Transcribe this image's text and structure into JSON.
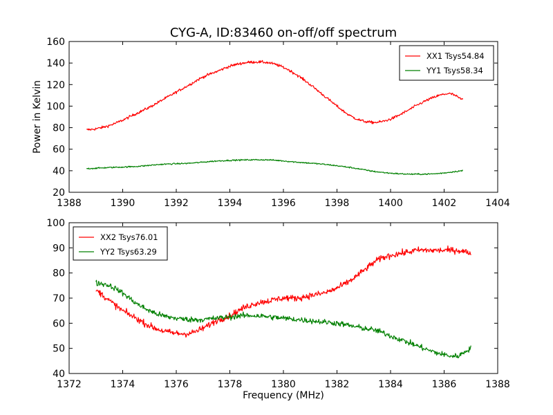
{
  "figure": {
    "title": "CYG-A, ID:83460 on-off/off spectrum"
  },
  "chart_data": [
    {
      "type": "line",
      "title": "CYG-A, ID:83460 on-off/off spectrum",
      "xlabel": "",
      "ylabel": "Power in Kelvin",
      "xlim": [
        1388,
        1404
      ],
      "ylim": [
        20,
        160
      ],
      "xticks": [
        1388,
        1390,
        1392,
        1394,
        1396,
        1398,
        1400,
        1402,
        1404
      ],
      "yticks": [
        20,
        40,
        60,
        80,
        100,
        120,
        140,
        160
      ],
      "xtick_labels": [
        "1388",
        "1390",
        "1392",
        "1394",
        "1396",
        "1398",
        "1400",
        "1402",
        "1404"
      ],
      "ytick_labels": [
        "20",
        "40",
        "60",
        "80",
        "100",
        "120",
        "140",
        "160"
      ],
      "grid": false,
      "legend_position": "top-right",
      "series": [
        {
          "name": "XX1 Tsys54.84",
          "color": "#ff0000",
          "noise": 0.9,
          "x": [
            1388.65,
            1389.0,
            1389.5,
            1390.0,
            1390.5,
            1391.0,
            1391.5,
            1392.0,
            1392.5,
            1393.0,
            1393.5,
            1394.0,
            1394.5,
            1395.0,
            1395.5,
            1396.0,
            1396.5,
            1397.0,
            1397.5,
            1398.0,
            1398.5,
            1399.0,
            1399.5,
            1400.0,
            1400.5,
            1401.0,
            1401.5,
            1402.0,
            1402.3,
            1402.7
          ],
          "values": [
            78,
            79,
            82,
            87,
            93,
            99,
            106,
            113,
            120,
            127,
            132,
            137,
            140,
            141,
            140,
            136,
            129,
            120,
            110,
            100,
            91,
            86,
            85,
            88,
            94,
            101,
            107,
            111,
            111,
            106
          ]
        },
        {
          "name": "YY1 Tsys58.34",
          "color": "#008000",
          "noise": 0.45,
          "x": [
            1388.65,
            1389.5,
            1390.5,
            1391.5,
            1392.5,
            1393.5,
            1394.5,
            1395.5,
            1396.5,
            1397.5,
            1398.5,
            1399.5,
            1400.5,
            1401.5,
            1402.0,
            1402.7
          ],
          "values": [
            42,
            43,
            44,
            46,
            47,
            49,
            50,
            50,
            48,
            46,
            43,
            39,
            37,
            37,
            38,
            40
          ]
        }
      ]
    },
    {
      "type": "line",
      "title": "",
      "xlabel": "Frequency (MHz)",
      "ylabel": "",
      "xlim": [
        1372,
        1388
      ],
      "ylim": [
        40,
        100
      ],
      "xticks": [
        1372,
        1374,
        1376,
        1378,
        1380,
        1382,
        1384,
        1386,
        1388
      ],
      "yticks": [
        40,
        50,
        60,
        70,
        80,
        90,
        100
      ],
      "xtick_labels": [
        "1372",
        "1374",
        "1376",
        "1378",
        "1380",
        "1382",
        "1384",
        "1386",
        "1388"
      ],
      "ytick_labels": [
        "40",
        "50",
        "60",
        "70",
        "80",
        "90",
        "100"
      ],
      "grid": false,
      "legend_position": "top-left",
      "series": [
        {
          "name": "XX2 Tsys76.01",
          "color": "#ff0000",
          "noise": 0.9,
          "x": [
            1373.0,
            1373.5,
            1374.0,
            1374.5,
            1375.0,
            1375.5,
            1376.0,
            1376.5,
            1377.0,
            1377.5,
            1378.0,
            1378.5,
            1379.0,
            1379.5,
            1380.0,
            1380.5,
            1381.0,
            1381.5,
            1382.0,
            1382.5,
            1383.0,
            1383.5,
            1384.0,
            1384.5,
            1385.0,
            1385.5,
            1386.0,
            1386.5,
            1387.0
          ],
          "values": [
            73,
            69,
            65,
            62,
            59,
            57,
            56,
            56,
            58,
            61,
            63,
            66,
            68,
            69,
            70,
            70,
            71,
            72,
            74,
            77,
            81,
            85,
            87,
            88,
            89,
            89,
            89,
            89,
            88
          ]
        },
        {
          "name": "YY2 Tsys63.29",
          "color": "#008000",
          "noise": 0.8,
          "x": [
            1373.0,
            1373.5,
            1374.0,
            1374.5,
            1375.0,
            1375.5,
            1376.0,
            1376.5,
            1377.0,
            1377.5,
            1378.0,
            1378.5,
            1379.0,
            1379.5,
            1380.0,
            1380.5,
            1381.0,
            1381.5,
            1382.0,
            1382.5,
            1383.0,
            1383.5,
            1384.0,
            1384.5,
            1385.0,
            1385.5,
            1386.0,
            1386.5,
            1387.0
          ],
          "values": [
            76,
            75,
            72,
            68,
            65,
            63,
            62,
            61.5,
            61.5,
            62,
            62.5,
            63,
            63,
            62.5,
            62,
            61.5,
            61,
            60.5,
            60,
            59,
            58,
            57,
            55,
            53,
            51,
            49,
            47.5,
            47,
            50
          ]
        }
      ]
    }
  ]
}
